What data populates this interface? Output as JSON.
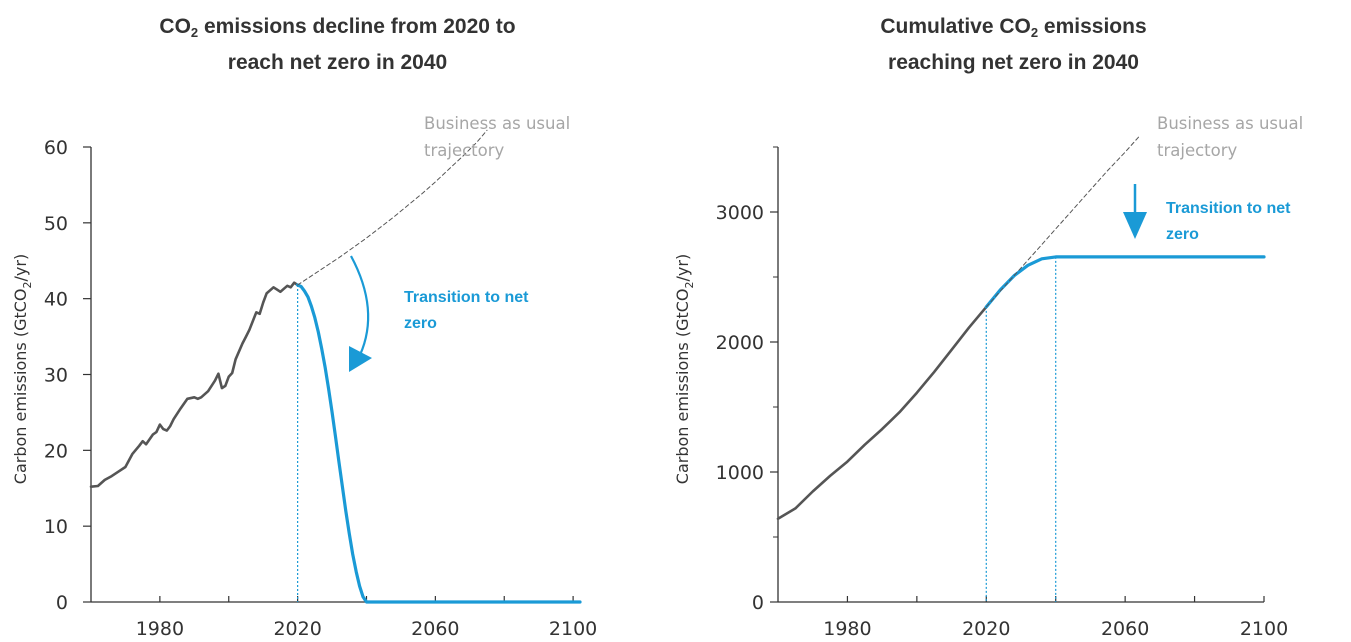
{
  "colors": {
    "historical": "#555555",
    "pathway": "#1a9ad6",
    "bau": "#555555",
    "axis": "#333333",
    "bau_label": "#a6a6a6"
  },
  "chart_data": [
    {
      "type": "line",
      "title_parts": [
        "CO",
        "2",
        " emissions decline from 2020 to"
      ],
      "title_line2": "reach net zero in 2040",
      "ylabel_parts": [
        "Carbon emissions (GtCO",
        "2",
        "/yr)"
      ],
      "xlim": [
        1960,
        2102
      ],
      "ylim": [
        0,
        60
      ],
      "xticks": [
        1980,
        2020,
        2060,
        2100
      ],
      "xtick_labels": [
        "1980",
        "2020",
        "2060",
        "2100"
      ],
      "xminor_ticks": [
        2000,
        2040,
        2080
      ],
      "yticks": [
        0,
        10,
        20,
        30,
        40,
        50,
        60
      ],
      "ytick_labels": [
        "0",
        "10",
        "20",
        "30",
        "40",
        "50",
        "60"
      ],
      "bau_label": [
        "Business as usual",
        "trajectory"
      ],
      "annotation": [
        "Transition to net",
        "zero"
      ],
      "series": [
        {
          "role": "historical",
          "x": [
            1960,
            1962,
            1964,
            1966,
            1968,
            1970,
            1972,
            1974,
            1975,
            1976,
            1978,
            1979,
            1980,
            1981,
            1982,
            1983,
            1984,
            1986,
            1988,
            1990,
            1991,
            1992,
            1994,
            1996,
            1997,
            1998,
            1999,
            2000,
            2001,
            2002,
            2004,
            2005,
            2006,
            2008,
            2009,
            2010,
            2011,
            2012,
            2013,
            2014,
            2015,
            2016,
            2017,
            2018,
            2019,
            2020
          ],
          "y": [
            15.2,
            15.3,
            16.1,
            16.6,
            17.2,
            17.8,
            19.5,
            20.6,
            21.2,
            20.8,
            22.1,
            22.4,
            23.4,
            22.8,
            22.6,
            23.2,
            24.1,
            25.5,
            26.8,
            27.0,
            26.8,
            27.0,
            27.8,
            29.2,
            30.1,
            28.2,
            28.5,
            29.7,
            30.2,
            32.0,
            34.1,
            35.0,
            35.9,
            38.2,
            38.0,
            39.5,
            40.7,
            41.1,
            41.5,
            41.2,
            40.9,
            41.3,
            41.7,
            41.5,
            42.1,
            41.8
          ]
        },
        {
          "role": "pathway",
          "x": [
            2020,
            2021,
            2022,
            2023,
            2024,
            2025,
            2026,
            2027,
            2028,
            2029,
            2030,
            2031,
            2032,
            2033,
            2034,
            2035,
            2036,
            2037,
            2038,
            2039,
            2040,
            2060,
            2080,
            2102
          ],
          "y": [
            41.8,
            41.6,
            41.0,
            40.2,
            39.0,
            37.5,
            35.6,
            33.4,
            30.9,
            28.1,
            25.0,
            21.8,
            18.5,
            15.2,
            12.0,
            9.0,
            6.3,
            4.0,
            2.1,
            0.7,
            0,
            0,
            0,
            0
          ]
        },
        {
          "role": "bau",
          "x": [
            2020,
            2024,
            2028,
            2032,
            2036,
            2040,
            2044,
            2048,
            2052,
            2056,
            2060,
            2064,
            2068,
            2072,
            2075
          ],
          "y": [
            41.8,
            43.0,
            44.2,
            45.4,
            46.7,
            48.0,
            49.4,
            50.8,
            52.3,
            53.8,
            55.4,
            57.1,
            58.8,
            60.6,
            62.2
          ]
        }
      ],
      "reference_x": [
        2020
      ]
    },
    {
      "type": "line",
      "title_parts": [
        "Cumulative CO",
        "2",
        " emissions"
      ],
      "title_line2": "reaching net zero in 2040",
      "ylabel_parts": [
        "Carbon emissions (GtCO",
        "2",
        "/yr)"
      ],
      "xlim": [
        1960,
        2100
      ],
      "ylim": [
        0,
        3500
      ],
      "xticks": [
        1980,
        2020,
        2060,
        2100
      ],
      "xtick_labels": [
        "1980",
        "2020",
        "2060",
        "2100"
      ],
      "xminor_ticks": [
        2000,
        2040,
        2080
      ],
      "yticks": [
        0,
        1000,
        2000,
        3000
      ],
      "ytick_labels": [
        "0",
        "1000",
        "2000",
        "3000"
      ],
      "yminor_ticks": [
        500,
        1500,
        2500,
        3500
      ],
      "bau_label": [
        "Business as usual",
        "trajectory"
      ],
      "annotation": [
        "Transition to net",
        "zero"
      ],
      "series": [
        {
          "role": "historical",
          "x": [
            1960,
            1965,
            1970,
            1975,
            1980,
            1985,
            1990,
            1995,
            2000,
            2005,
            2010,
            2015,
            2020
          ],
          "y": [
            640,
            720,
            850,
            970,
            1080,
            1210,
            1330,
            1460,
            1610,
            1770,
            1940,
            2110,
            2270
          ]
        },
        {
          "role": "pathway",
          "x": [
            2020,
            2024,
            2028,
            2032,
            2036,
            2040,
            2060,
            2080,
            2100
          ],
          "y": [
            2270,
            2400,
            2510,
            2590,
            2640,
            2655,
            2655,
            2655,
            2655
          ]
        },
        {
          "role": "bau",
          "x": [
            2020,
            2025,
            2030,
            2035,
            2040,
            2045,
            2050,
            2055,
            2060,
            2064
          ],
          "y": [
            2270,
            2420,
            2570,
            2720,
            2870,
            3020,
            3170,
            3320,
            3460,
            3580
          ]
        }
      ],
      "reference_x": [
        2020,
        2040
      ]
    }
  ]
}
